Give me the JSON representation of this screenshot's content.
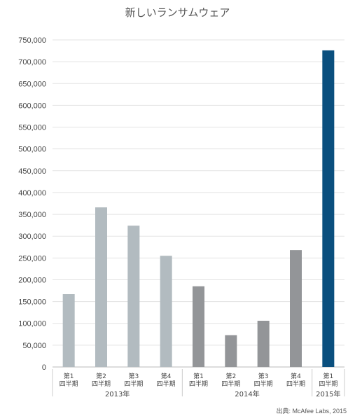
{
  "chart_data": {
    "type": "bar",
    "title": "新しいランサムウェア",
    "ylim": [
      0,
      750000
    ],
    "y_ticks": [
      "0",
      "50,000",
      "100,000",
      "150,000",
      "200,000",
      "250,000",
      "300,000",
      "350,000",
      "400,000",
      "450,000",
      "500,000",
      "550,000",
      "600,000",
      "650,000",
      "700,000",
      "750,000"
    ],
    "y_tick_values": [
      0,
      50000,
      100000,
      150000,
      200000,
      250000,
      300000,
      350000,
      400000,
      450000,
      500000,
      550000,
      600000,
      650000,
      700000,
      750000
    ],
    "grid": true,
    "categories": [
      {
        "quarter": "第1",
        "sub": "四半期"
      },
      {
        "quarter": "第2",
        "sub": "四半期"
      },
      {
        "quarter": "第3",
        "sub": "四半期"
      },
      {
        "quarter": "第4",
        "sub": "四半期"
      },
      {
        "quarter": "第1",
        "sub": "四半期"
      },
      {
        "quarter": "第2",
        "sub": "四半期"
      },
      {
        "quarter": "第3",
        "sub": "四半期"
      },
      {
        "quarter": "第4",
        "sub": "四半期"
      },
      {
        "quarter": "第1",
        "sub": "四半期"
      }
    ],
    "values": [
      167000,
      366000,
      324000,
      255000,
      185000,
      73000,
      106000,
      268000,
      726000
    ],
    "years": [
      "2013年",
      "2014年",
      "2015年"
    ],
    "colors": {
      "2013": "#b2bbc0",
      "2014": "#939598",
      "2015": "#0a4f7e",
      "grid": "#e3e3e3",
      "text": "#444444"
    }
  },
  "source": "出典: McAfee Labs, 2015"
}
